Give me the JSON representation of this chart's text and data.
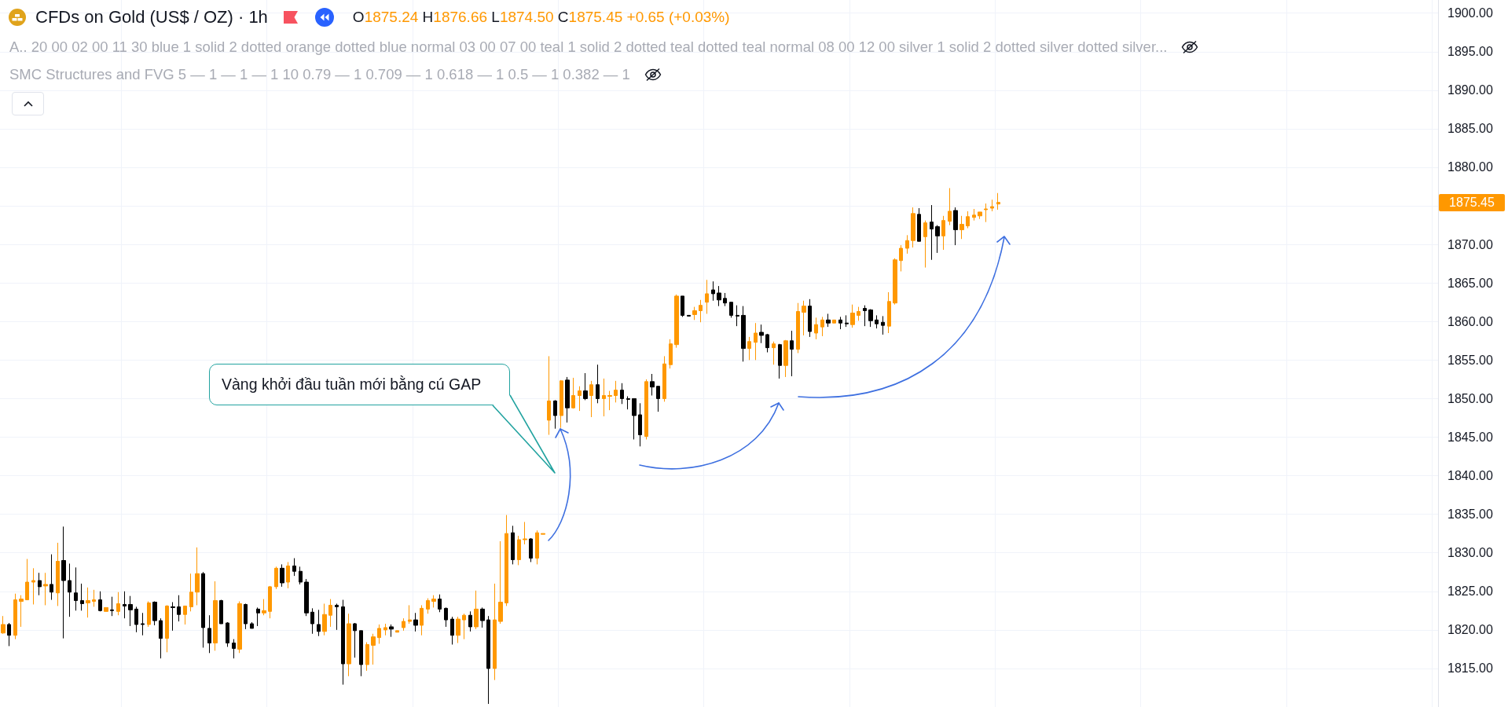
{
  "chart_data": {
    "type": "candlestick",
    "title": "CFDs on Gold (US$ / OZ) · 1h",
    "categories": [
      null,
      null,
      null,
      null,
      null,
      null,
      null,
      null,
      null,
      null,
      null,
      null,
      null,
      null,
      null,
      null,
      null,
      null,
      null,
      null,
      null,
      null,
      null,
      null,
      null,
      null,
      null,
      null,
      null,
      null,
      null,
      null,
      null,
      null,
      null,
      null,
      null,
      null,
      null,
      null,
      null,
      null,
      null,
      null,
      null,
      null,
      null,
      null,
      null,
      null,
      null,
      null,
      null,
      null,
      null,
      null,
      null,
      null,
      null,
      null,
      null,
      null,
      null,
      null,
      null,
      null,
      null,
      null,
      null,
      null,
      null,
      null,
      null,
      null,
      null,
      null,
      null,
      null,
      null,
      null,
      null,
      null,
      null,
      null,
      null,
      null,
      null,
      null,
      null,
      null,
      null,
      null,
      null,
      null,
      null,
      null,
      null,
      null,
      null,
      null,
      null,
      null,
      null,
      null,
      null,
      null,
      null,
      null,
      null,
      null,
      null,
      null,
      null,
      null,
      null,
      null,
      null,
      null,
      null,
      null,
      null,
      null,
      null,
      null,
      null,
      null,
      null,
      null,
      null,
      null,
      null,
      null,
      null,
      null,
      null,
      null,
      null,
      null,
      null,
      null,
      null,
      null,
      null,
      null,
      null,
      null,
      null,
      null,
      null,
      null,
      null,
      null,
      null,
      null,
      null,
      null,
      null,
      null,
      null,
      null,
      null,
      null,
      null,
      null,
      null,
      null,
      null,
      null,
      null,
      null,
      null,
      null,
      null,
      null,
      null,
      null,
      null,
      null,
      null,
      null,
      null,
      null,
      null,
      null,
      null,
      null,
      null,
      null,
      null,
      null,
      null,
      null,
      null,
      null,
      null,
      null,
      null,
      null,
      null,
      null,
      null,
      null,
      null,
      null,
      null,
      null,
      null,
      null,
      null,
      null,
      null,
      null,
      null,
      null,
      null,
      null,
      null,
      null,
      null,
      null,
      null,
      null,
      null,
      null,
      null,
      null,
      null,
      null,
      null,
      null,
      null,
      null,
      null,
      null,
      null,
      null,
      null
    ],
    "ohlc": [
      [
        1819.6,
        1821.8,
        1819.5,
        1820.7
      ],
      [
        1820.7,
        1820.9,
        1817.9,
        1819.3
      ],
      [
        1819.3,
        1824.7,
        1818.8,
        1823.9
      ],
      [
        1823.7,
        1824.5,
        1820.4,
        1824.0
      ],
      [
        1823.9,
        1829.2,
        1823.9,
        1826.2
      ],
      [
        1826.2,
        1828.0,
        1823.3,
        1826.4
      ],
      [
        1826.4,
        1827.4,
        1824.5,
        1825.6
      ],
      [
        1825.7,
        1827.4,
        1823.2,
        1825.9
      ],
      [
        1825.9,
        1829.8,
        1823.9,
        1824.9
      ],
      [
        1824.8,
        1831.3,
        1823.1,
        1828.9
      ],
      [
        1829.0,
        1833.4,
        1818.9,
        1826.4
      ],
      [
        1826.4,
        1828.6,
        1821.7,
        1824.9
      ],
      [
        1824.8,
        1828.1,
        1822.5,
        1823.8
      ],
      [
        1823.8,
        1826.0,
        1822.5,
        1823.4
      ],
      [
        1823.5,
        1825.5,
        1821.6,
        1823.8
      ],
      [
        1823.7,
        1825.2,
        1823.0,
        1823.9
      ],
      [
        1823.9,
        1825.0,
        1822.4,
        1822.5
      ],
      [
        1822.4,
        1822.9,
        1822.4,
        1822.9
      ],
      [
        1822.6,
        1824.3,
        1821.8,
        1822.5
      ],
      [
        1822.4,
        1824.9,
        1821.9,
        1823.4
      ],
      [
        1823.3,
        1825.0,
        1821.5,
        1823.1
      ],
      [
        1823.3,
        1824.4,
        1820.5,
        1822.6
      ],
      [
        1822.7,
        1823.0,
        1819.7,
        1820.7
      ],
      [
        1820.8,
        1822.2,
        1819.3,
        1820.7
      ],
      [
        1820.7,
        1823.7,
        1820.4,
        1823.5
      ],
      [
        1823.6,
        1823.7,
        1820.6,
        1821.2
      ],
      [
        1821.2,
        1821.5,
        1816.3,
        1818.9
      ],
      [
        1818.9,
        1823.2,
        1817.1,
        1823.1
      ],
      [
        1823.0,
        1823.6,
        1819.9,
        1822.9
      ],
      [
        1823.0,
        1824.5,
        1821.1,
        1822.0
      ],
      [
        1822.0,
        1823.1,
        1820.7,
        1823.1
      ],
      [
        1823.0,
        1827.3,
        1822.4,
        1824.9
      ],
      [
        1824.9,
        1830.7,
        1823.2,
        1827.3
      ],
      [
        1827.3,
        1827.5,
        1817.7,
        1820.3
      ],
      [
        1820.2,
        1821.9,
        1817.0,
        1818.3
      ],
      [
        1818.3,
        1826.3,
        1817.3,
        1823.8
      ],
      [
        1823.8,
        1823.9,
        1820.8,
        1820.8
      ],
      [
        1820.9,
        1821.0,
        1817.8,
        1818.3
      ],
      [
        1818.3,
        1818.8,
        1816.3,
        1817.6
      ],
      [
        1817.5,
        1823.7,
        1817.0,
        1823.4
      ],
      [
        1823.3,
        1823.4,
        1820.1,
        1820.8
      ],
      [
        1820.8,
        1821.0,
        1820.2,
        1820.2
      ],
      [
        1822.7,
        1822.9,
        1820.5,
        1822.2
      ],
      [
        1822.2,
        1824.0,
        1821.9,
        1822.5
      ],
      [
        1822.4,
        1825.7,
        1821.5,
        1825.6
      ],
      [
        1825.6,
        1828.2,
        1825.3,
        1828.0
      ],
      [
        1828.0,
        1828.5,
        1825.6,
        1826.1
      ],
      [
        1826.2,
        1828.8,
        1825.4,
        1828.3
      ],
      [
        1828.3,
        1829.3,
        1827.0,
        1827.6
      ],
      [
        1827.6,
        1828.2,
        1825.9,
        1826.2
      ],
      [
        1826.2,
        1826.6,
        1821.8,
        1822.2
      ],
      [
        1822.3,
        1822.8,
        1819.5,
        1820.8
      ],
      [
        1820.7,
        1822.6,
        1819.2,
        1819.8
      ],
      [
        1819.8,
        1823.4,
        1819.3,
        1822.0
      ],
      [
        1821.9,
        1824.0,
        1820.4,
        1823.2
      ],
      [
        1823.2,
        1823.4,
        1820.0,
        1823.0
      ],
      [
        1823.0,
        1823.9,
        1812.9,
        1815.6
      ],
      [
        1815.6,
        1822.1,
        1814.0,
        1820.8
      ],
      [
        1820.8,
        1820.9,
        1816.4,
        1819.9
      ],
      [
        1819.9,
        1819.9,
        1814.0,
        1815.5
      ],
      [
        1815.5,
        1818.4,
        1814.7,
        1818.1
      ],
      [
        1818.0,
        1819.5,
        1815.5,
        1819.1
      ],
      [
        1819.0,
        1820.7,
        1818.2,
        1820.2
      ],
      [
        1820.0,
        1820.8,
        1819.3,
        1820.3
      ],
      [
        1820.4,
        1820.7,
        1819.1,
        1820.1
      ],
      [
        1819.7,
        1819.9,
        1819.7,
        1819.9
      ],
      [
        1820.3,
        1821.5,
        1819.9,
        1821.1
      ],
      [
        1821.1,
        1823.2,
        1820.8,
        1821.3
      ],
      [
        1821.3,
        1822.2,
        1819.8,
        1820.6
      ],
      [
        1820.6,
        1823.2,
        1819.3,
        1822.8
      ],
      [
        1822.7,
        1824.1,
        1822.1,
        1823.8
      ],
      [
        1823.7,
        1824.5,
        1822.9,
        1824.0
      ],
      [
        1824.0,
        1824.6,
        1822.3,
        1822.7
      ],
      [
        1822.8,
        1822.9,
        1820.4,
        1821.3
      ],
      [
        1821.4,
        1821.7,
        1818.1,
        1819.3
      ],
      [
        1819.3,
        1821.7,
        1818.3,
        1821.4
      ],
      [
        1821.3,
        1822.1,
        1818.8,
        1821.9
      ],
      [
        1821.9,
        1822.4,
        1819.8,
        1820.4
      ],
      [
        1820.4,
        1825.1,
        1820.1,
        1822.7
      ],
      [
        1822.7,
        1822.9,
        1820.3,
        1821.2
      ],
      [
        1821.3,
        1821.8,
        1810.4,
        1815.0
      ],
      [
        1815.0,
        1826.0,
        1813.5,
        1821.3
      ],
      [
        1821.1,
        1831.5,
        1820.8,
        1823.6
      ],
      [
        1823.5,
        1834.9,
        1823.1,
        1832.5
      ],
      [
        1832.6,
        1833.5,
        1828.5,
        1829.1
      ],
      [
        1829.1,
        1832.2,
        1828.4,
        1831.7
      ],
      [
        1831.7,
        1834.0,
        1831.1,
        1831.8
      ],
      [
        1831.8,
        1831.9,
        1828.8,
        1829.3
      ],
      [
        1829.3,
        1832.9,
        1828.5,
        1832.6
      ],
      [
        1832.4,
        1832.5,
        1832.4,
        1832.5
      ],
      [
        1847.2,
        1855.5,
        1845.3,
        1849.7
      ],
      [
        1849.7,
        1849.8,
        1846.1,
        1847.8
      ],
      [
        1847.8,
        1852.4,
        1846.2,
        1852.3
      ],
      [
        1852.4,
        1852.8,
        1846.9,
        1848.8
      ],
      [
        1848.8,
        1852.7,
        1848.7,
        1850.4
      ],
      [
        1850.4,
        1851.6,
        1848.4,
        1851.0
      ],
      [
        1851.0,
        1853.3,
        1849.8,
        1850.0
      ],
      [
        1850.4,
        1852.3,
        1847.6,
        1851.8
      ],
      [
        1851.8,
        1854.4,
        1849.4,
        1850.0
      ],
      [
        1850.0,
        1852.6,
        1847.7,
        1850.4
      ],
      [
        1850.3,
        1851.0,
        1848.5,
        1850.4
      ],
      [
        1850.4,
        1852.3,
        1849.5,
        1851.1
      ],
      [
        1851.1,
        1852.0,
        1849.3,
        1850.0
      ],
      [
        1850.0,
        1850.3,
        1848.6,
        1849.9
      ],
      [
        1850.0,
        1850.0,
        1844.7,
        1847.8
      ],
      [
        1847.9,
        1849.4,
        1843.8,
        1845.3
      ],
      [
        1845.1,
        1852.5,
        1844.7,
        1852.2
      ],
      [
        1852.2,
        1853.2,
        1850.4,
        1851.5
      ],
      [
        1851.6,
        1851.6,
        1848.3,
        1850.0
      ],
      [
        1850.0,
        1855.5,
        1849.6,
        1854.5
      ],
      [
        1854.4,
        1857.7,
        1853.9,
        1857.1
      ],
      [
        1857.0,
        1863.5,
        1856.6,
        1863.3
      ],
      [
        1863.3,
        1863.3,
        1860.6,
        1860.8
      ],
      [
        1860.8,
        1860.8,
        1860.7,
        1860.7
      ],
      [
        1860.9,
        1861.9,
        1860.2,
        1861.4
      ],
      [
        1861.4,
        1862.8,
        1859.9,
        1862.1
      ],
      [
        1862.5,
        1865.4,
        1861.0,
        1863.6
      ],
      [
        1864.1,
        1865.2,
        1862.7,
        1863.6
      ],
      [
        1863.7,
        1864.6,
        1862.0,
        1862.8
      ],
      [
        1863.0,
        1863.7,
        1862.0,
        1862.4
      ],
      [
        1862.5,
        1862.5,
        1860.5,
        1860.8
      ],
      [
        1860.8,
        1862.1,
        1859.4,
        1860.7
      ],
      [
        1860.8,
        1862.0,
        1854.8,
        1856.5
      ],
      [
        1856.5,
        1858.0,
        1855.0,
        1857.4
      ],
      [
        1857.3,
        1859.8,
        1855.0,
        1858.5
      ],
      [
        1858.6,
        1859.6,
        1857.2,
        1858.2
      ],
      [
        1858.3,
        1858.4,
        1856.0,
        1856.6
      ],
      [
        1856.6,
        1857.4,
        1854.4,
        1857.1
      ],
      [
        1857.0,
        1857.1,
        1852.6,
        1854.3
      ],
      [
        1854.3,
        1857.6,
        1852.8,
        1857.5
      ],
      [
        1857.5,
        1858.8,
        1852.9,
        1856.4
      ],
      [
        1856.4,
        1862.4,
        1855.9,
        1861.3
      ],
      [
        1861.2,
        1862.7,
        1858.2,
        1862.0
      ],
      [
        1862.0,
        1862.9,
        1858.0,
        1858.7
      ],
      [
        1858.5,
        1860.5,
        1857.7,
        1859.6
      ],
      [
        1859.3,
        1860.6,
        1858.1,
        1860.2
      ],
      [
        1860.2,
        1861.0,
        1859.3,
        1859.8
      ],
      [
        1859.8,
        1860.2,
        1859.8,
        1860.2
      ],
      [
        1860.2,
        1860.6,
        1859.0,
        1859.8
      ],
      [
        1859.8,
        1860.8,
        1859.3,
        1859.7
      ],
      [
        1859.6,
        1862.2,
        1859.2,
        1861.1
      ],
      [
        1860.8,
        1861.9,
        1860.1,
        1861.3
      ],
      [
        1861.7,
        1862.1,
        1859.4,
        1861.4
      ],
      [
        1861.5,
        1861.6,
        1859.3,
        1860.1
      ],
      [
        1860.2,
        1860.8,
        1859.1,
        1859.7
      ],
      [
        1859.9,
        1860.7,
        1858.3,
        1859.5
      ],
      [
        1859.4,
        1863.8,
        1858.5,
        1862.6
      ],
      [
        1862.4,
        1868.2,
        1862.2,
        1868.0
      ],
      [
        1867.9,
        1869.9,
        1866.5,
        1869.5
      ],
      [
        1869.5,
        1871.2,
        1868.8,
        1870.5
      ],
      [
        1870.5,
        1874.8,
        1869.6,
        1874.0
      ],
      [
        1873.9,
        1874.7,
        1870.4,
        1870.4
      ],
      [
        1871.0,
        1873.1,
        1867.0,
        1872.8
      ],
      [
        1872.9,
        1875.1,
        1868.0,
        1872.0
      ],
      [
        1872.3,
        1872.5,
        1868.9,
        1871.1
      ],
      [
        1871.1,
        1873.7,
        1869.3,
        1873.1
      ],
      [
        1873.0,
        1877.3,
        1872.5,
        1874.3
      ],
      [
        1874.4,
        1874.8,
        1869.9,
        1871.9
      ],
      [
        1871.9,
        1873.7,
        1870.7,
        1872.6
      ],
      [
        1872.4,
        1874.3,
        1872.1,
        1873.6
      ],
      [
        1873.5,
        1874.6,
        1873.1,
        1873.8
      ],
      [
        1873.7,
        1874.2,
        1873.3,
        1874.2
      ],
      [
        1874.5,
        1875.3,
        1872.9,
        1874.6
      ],
      [
        1874.7,
        1875.8,
        1874.3,
        1874.9
      ],
      [
        1875.24,
        1876.66,
        1874.5,
        1875.45
      ],
      null,
      null,
      null,
      null,
      null,
      null,
      null,
      null,
      null,
      null,
      null,
      null,
      null,
      null,
      null,
      null,
      null,
      null,
      null,
      null,
      null,
      null,
      null,
      null,
      null,
      null,
      null,
      null,
      null,
      null,
      null,
      null,
      null,
      null,
      null,
      null,
      null,
      null,
      null,
      null,
      null,
      null,
      null,
      null,
      null,
      null,
      null,
      null,
      null,
      null,
      null,
      null,
      null,
      null,
      null,
      null,
      null,
      null,
      null,
      null,
      null,
      null,
      null,
      null,
      null,
      null,
      null,
      null,
      null,
      null,
      null,
      null
    ],
    "colors": [
      "#ff9800",
      "#000000",
      "#ff9800",
      "#ff9800",
      "#ff9800",
      "#ff9800",
      "#000000",
      "#ff9800",
      "#000000",
      "#ff9800",
      "#000000",
      "#000000",
      "#000000",
      "#000000",
      "#ff9800",
      "#ff9800",
      "#000000",
      "#ff9800",
      "#000000",
      "#ff9800",
      "#000000",
      "#000000",
      "#000000",
      "#000000",
      "#ff9800",
      "#000000",
      "#000000",
      "#ff9800",
      "#000000",
      "#000000",
      "#ff9800",
      "#ff9800",
      "#ff9800",
      "#000000",
      "#000000",
      "#ff9800",
      "#000000",
      "#000000",
      "#000000",
      "#ff9800",
      "#000000",
      "#000000",
      "#000000",
      "#ff9800",
      "#ff9800",
      "#ff9800",
      "#000000",
      "#ff9800",
      "#000000",
      "#000000",
      "#000000",
      "#000000",
      "#000000",
      "#ff9800",
      "#ff9800",
      "#000000",
      "#000000",
      "#ff9800",
      "#000000",
      "#000000",
      "#ff9800",
      "#ff9800",
      "#ff9800",
      "#ff9800",
      "#000000",
      "#ff9800",
      "#ff9800",
      "#ff9800",
      "#000000",
      "#ff9800",
      "#ff9800",
      "#ff9800",
      "#000000",
      "#000000",
      "#000000",
      "#ff9800",
      "#ff9800",
      "#000000",
      "#ff9800",
      "#000000",
      "#000000",
      "#ff9800",
      "#ff9800",
      "#ff9800",
      "#000000",
      "#ff9800",
      "#ff9800",
      "#000000",
      "#ff9800",
      "#ff9800",
      "#ff9800",
      "#000000",
      "#ff9800",
      "#000000",
      "#ff9800",
      "#ff9800",
      "#000000",
      "#ff9800",
      "#000000",
      "#ff9800",
      "#ff9800",
      "#ff9800",
      "#000000",
      "#000000",
      "#000000",
      "#000000",
      "#ff9800",
      "#000000",
      "#000000",
      "#ff9800",
      "#ff9800",
      "#ff9800",
      "#000000",
      "#000000",
      "#ff9800",
      "#ff9800",
      "#ff9800",
      "#000000",
      "#000000",
      "#000000",
      "#000000",
      "#000000",
      "#000000",
      "#ff9800",
      "#ff9800",
      "#000000",
      "#000000",
      "#ff9800",
      "#000000",
      "#ff9800",
      "#000000",
      "#ff9800",
      "#ff9800",
      "#000000",
      "#ff9800",
      "#ff9800",
      "#000000",
      "#ff9800",
      "#000000",
      "#000000",
      "#ff9800",
      "#ff9800",
      "#000000",
      "#000000",
      "#000000",
      "#000000",
      "#ff9800",
      "#ff9800",
      "#ff9800",
      "#ff9800",
      "#ff9800",
      "#000000",
      "#ff9800",
      "#000000",
      "#000000",
      "#ff9800",
      "#ff9800",
      "#000000",
      "#ff9800",
      "#ff9800",
      "#ff9800",
      "#ff9800",
      "#ff9800",
      "#ff9800",
      "#ff9800",
      null,
      null,
      null,
      null,
      null,
      null,
      null,
      null,
      null,
      null,
      null,
      null,
      null,
      null,
      null,
      null,
      null,
      null,
      null,
      null,
      null,
      null,
      null,
      null,
      null,
      null,
      null,
      null,
      null,
      null,
      null,
      null,
      null,
      null,
      null,
      null,
      null,
      null,
      null,
      null,
      null,
      null,
      null,
      null,
      null,
      null,
      null,
      null,
      null,
      null,
      null,
      null,
      null,
      null,
      null,
      null,
      null,
      null,
      null,
      null,
      null,
      null,
      null,
      null,
      null,
      null,
      null,
      null,
      null,
      null,
      null,
      null
    ],
    "ylim": [
      1810,
      1901.7
    ],
    "yticks": [
      {
        "value": 1815,
        "label": "1815.00"
      },
      {
        "value": 1820,
        "label": "1820.00"
      },
      {
        "value": 1825,
        "label": "1825.00"
      },
      {
        "value": 1830,
        "label": "1830.00"
      },
      {
        "value": 1835,
        "label": "1835.00"
      },
      {
        "value": 1840,
        "label": "1840.00"
      },
      {
        "value": 1845,
        "label": "1845.00"
      },
      {
        "value": 1850,
        "label": "1850.00"
      },
      {
        "value": 1855,
        "label": "1855.00"
      },
      {
        "value": 1860,
        "label": "1860.00"
      },
      {
        "value": 1865,
        "label": "1865.00"
      },
      {
        "value": 1870,
        "label": "1870.00"
      },
      {
        "value": 1875,
        "label": null
      },
      {
        "value": 1880,
        "label": "1880.00"
      },
      {
        "value": 1885,
        "label": "1885.00"
      },
      {
        "value": 1890,
        "label": "1890.00"
      },
      {
        "value": 1895,
        "label": "1895.00"
      },
      {
        "value": 1900,
        "label": "1900.00"
      }
    ],
    "grid": true,
    "tick_labels": "y",
    "annotations": [
      "O1875.24 H1876.66 L1874.50 C1875.45 +0.65 (+0.03%)",
      "A.. 20 00 02 00 11 30 blue 1 solid 2 dotted orange dotted blue normal 03 00 07 00 teal 1 solid 2 dotted teal dotted teal normal 08 00 12 00 silver 1 solid 2 dotted silver dotted silver...",
      "SMC Structures and FVG 5 — 1 — 1 — 1 10 0.79 — 1 0.709 — 1 0.618 — 1 0.5 — 1 0.382 — 1",
      "Vàng khởi đầu tuần mới bằng cú GAP",
      "1875.45"
    ]
  }
}
